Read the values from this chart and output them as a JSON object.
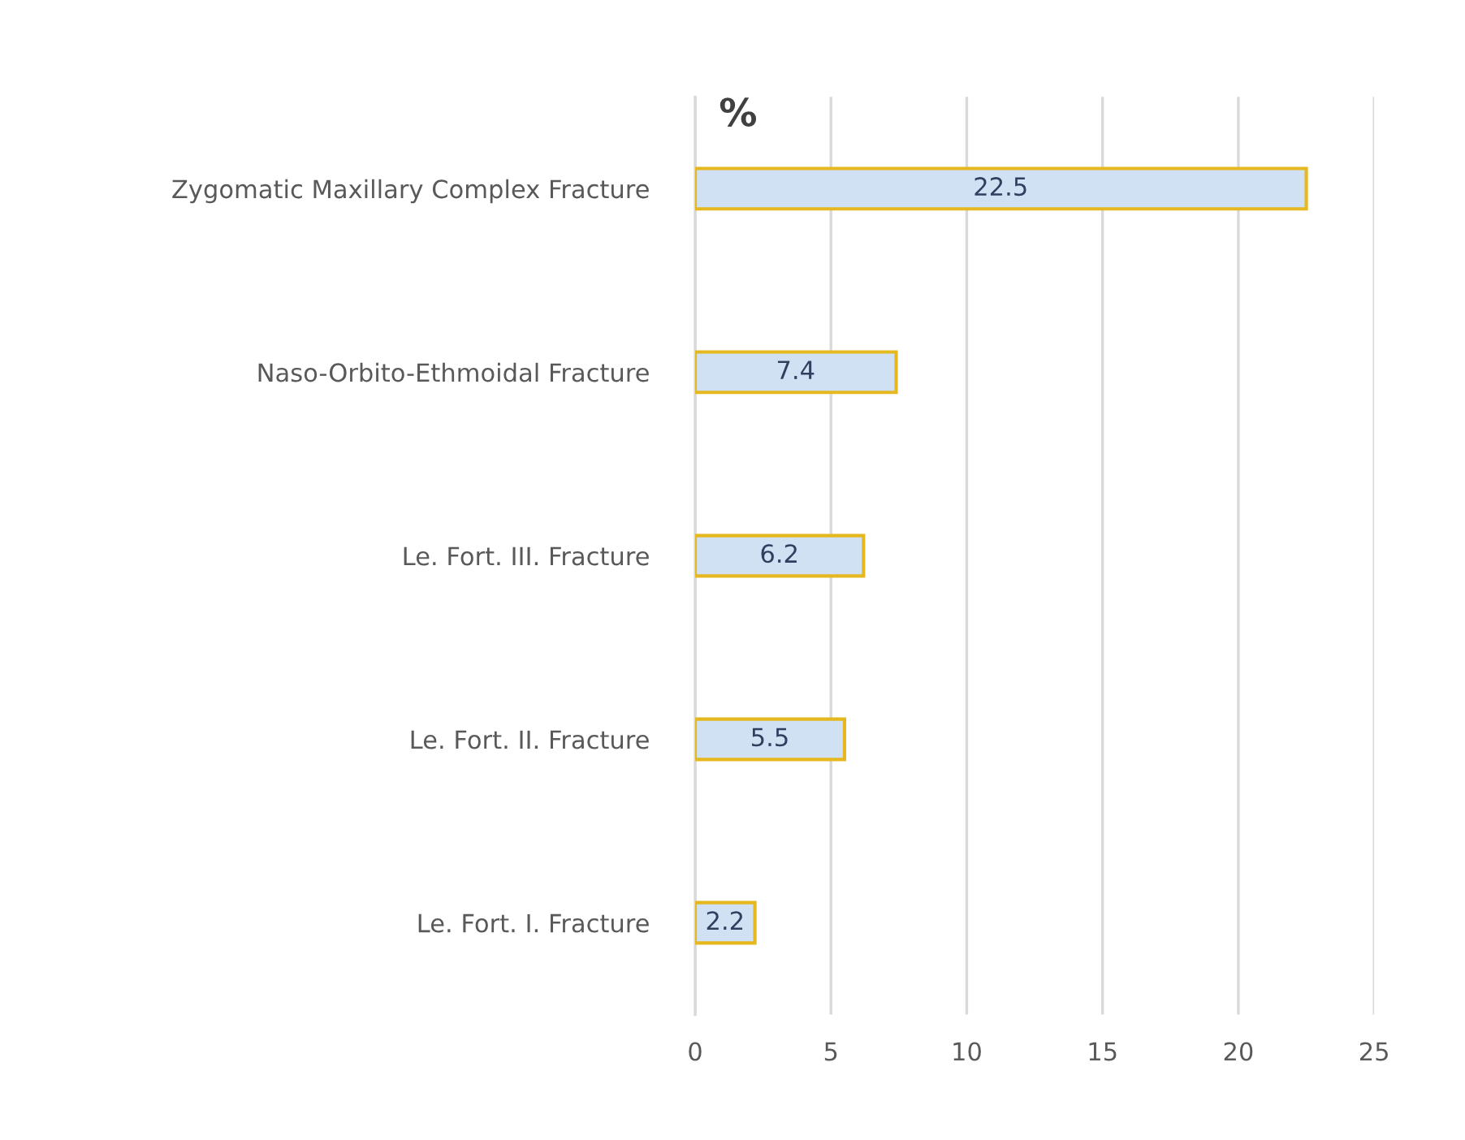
{
  "chart_data": {
    "type": "bar",
    "orientation": "horizontal",
    "title": "%",
    "categories": [
      "Zygomatic Maxillary Complex Fracture",
      "Naso-Orbito-Ethmoidal Fracture",
      "Le. Fort. III. Fracture",
      "Le. Fort. II. Fracture",
      "Le. Fort. I. Fracture"
    ],
    "values": [
      22.5,
      7.4,
      6.2,
      5.5,
      2.2
    ],
    "color": "#cfe1f2",
    "xlim": [
      0,
      25
    ],
    "xticks": [
      0,
      5,
      10,
      15,
      20,
      25
    ],
    "grid": "x",
    "data_labels": true
  }
}
